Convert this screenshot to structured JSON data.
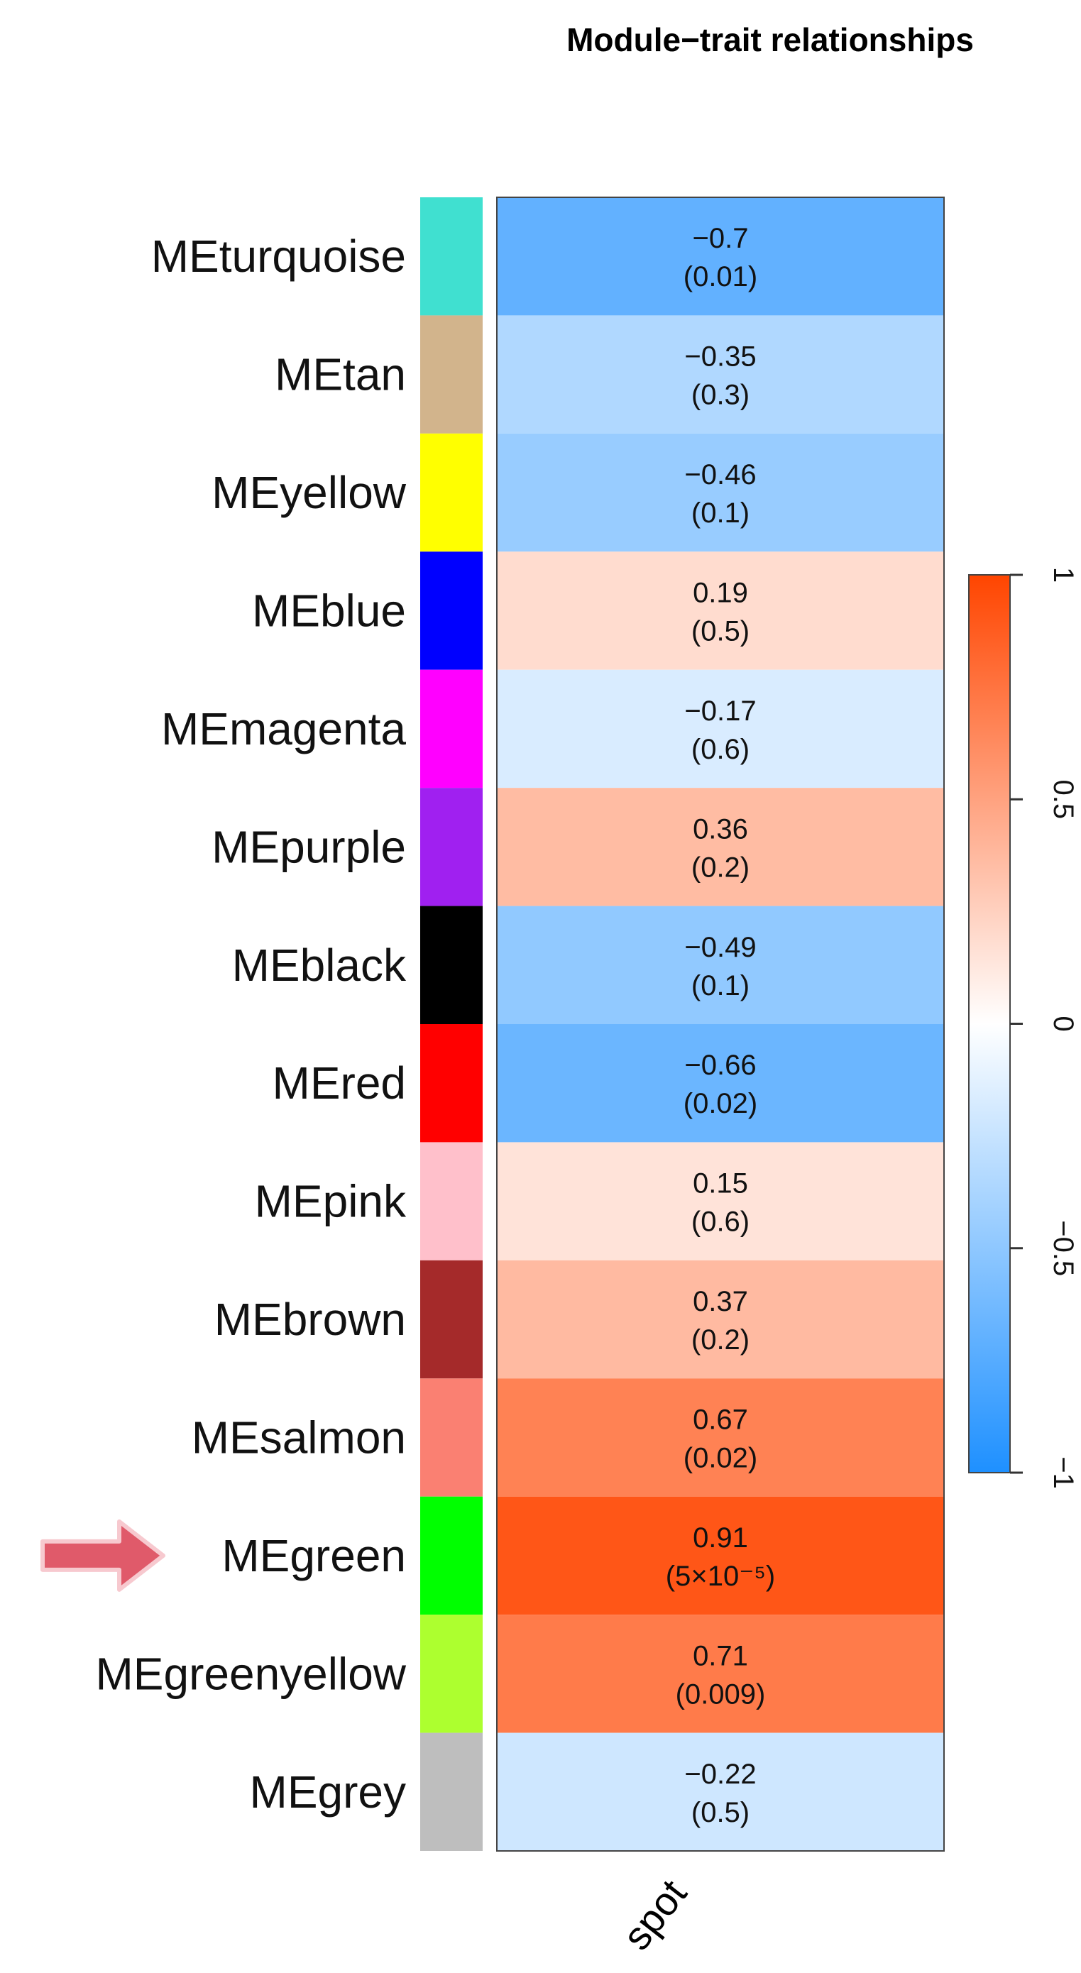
{
  "chart_data": {
    "type": "heatmap",
    "title": "Module−trait relationships",
    "x_categories": [
      "spot"
    ],
    "rows": [
      {
        "label": "MEturquoise",
        "module_color": "#40E0D0",
        "r": -0.7,
        "value_text": "−0.7",
        "p_text": "(0.01)"
      },
      {
        "label": "MEtan",
        "module_color": "#D2B48C",
        "r": -0.35,
        "value_text": "−0.35",
        "p_text": "(0.3)"
      },
      {
        "label": "MEyellow",
        "module_color": "#FFFF00",
        "r": -0.46,
        "value_text": "−0.46",
        "p_text": "(0.1)"
      },
      {
        "label": "MEblue",
        "module_color": "#0000FF",
        "r": 0.19,
        "value_text": "0.19",
        "p_text": "(0.5)"
      },
      {
        "label": "MEmagenta",
        "module_color": "#FF00FF",
        "r": -0.17,
        "value_text": "−0.17",
        "p_text": "(0.6)"
      },
      {
        "label": "MEpurple",
        "module_color": "#A020F0",
        "r": 0.36,
        "value_text": "0.36",
        "p_text": "(0.2)"
      },
      {
        "label": "MEblack",
        "module_color": "#000000",
        "r": -0.49,
        "value_text": "−0.49",
        "p_text": "(0.1)"
      },
      {
        "label": "MEred",
        "module_color": "#FF0000",
        "r": -0.66,
        "value_text": "−0.66",
        "p_text": "(0.02)"
      },
      {
        "label": "MEpink",
        "module_color": "#FFC0CB",
        "r": 0.15,
        "value_text": "0.15",
        "p_text": "(0.6)"
      },
      {
        "label": "MEbrown",
        "module_color": "#A52A2A",
        "r": 0.37,
        "value_text": "0.37",
        "p_text": "(0.2)"
      },
      {
        "label": "MEsalmon",
        "module_color": "#FA8072",
        "r": 0.67,
        "value_text": "0.67",
        "p_text": "(0.02)"
      },
      {
        "label": "MEgreen",
        "module_color": "#00FF00",
        "r": 0.91,
        "value_text": "0.91",
        "p_text": "(5×10⁻⁵)",
        "highlighted": true
      },
      {
        "label": "MEgreenyellow",
        "module_color": "#ADFF2F",
        "r": 0.71,
        "value_text": "0.71",
        "p_text": "(0.009)"
      },
      {
        "label": "MEgrey",
        "module_color": "#BEBEBE",
        "r": -0.22,
        "value_text": "−0.22",
        "p_text": "(0.5)"
      }
    ],
    "colorbar": {
      "range": [
        -1,
        1
      ],
      "ticks": [
        {
          "value": 1,
          "label": "1"
        },
        {
          "value": 0.5,
          "label": "0.5"
        },
        {
          "value": 0,
          "label": "0"
        },
        {
          "value": -0.5,
          "label": "−0.5"
        },
        {
          "value": -1,
          "label": "−1"
        }
      ],
      "low_color": "#1E90FF",
      "mid_color": "#FFFFFF",
      "high_color": "#FF4500"
    },
    "highlight_arrow_color": "#E05A6A"
  }
}
